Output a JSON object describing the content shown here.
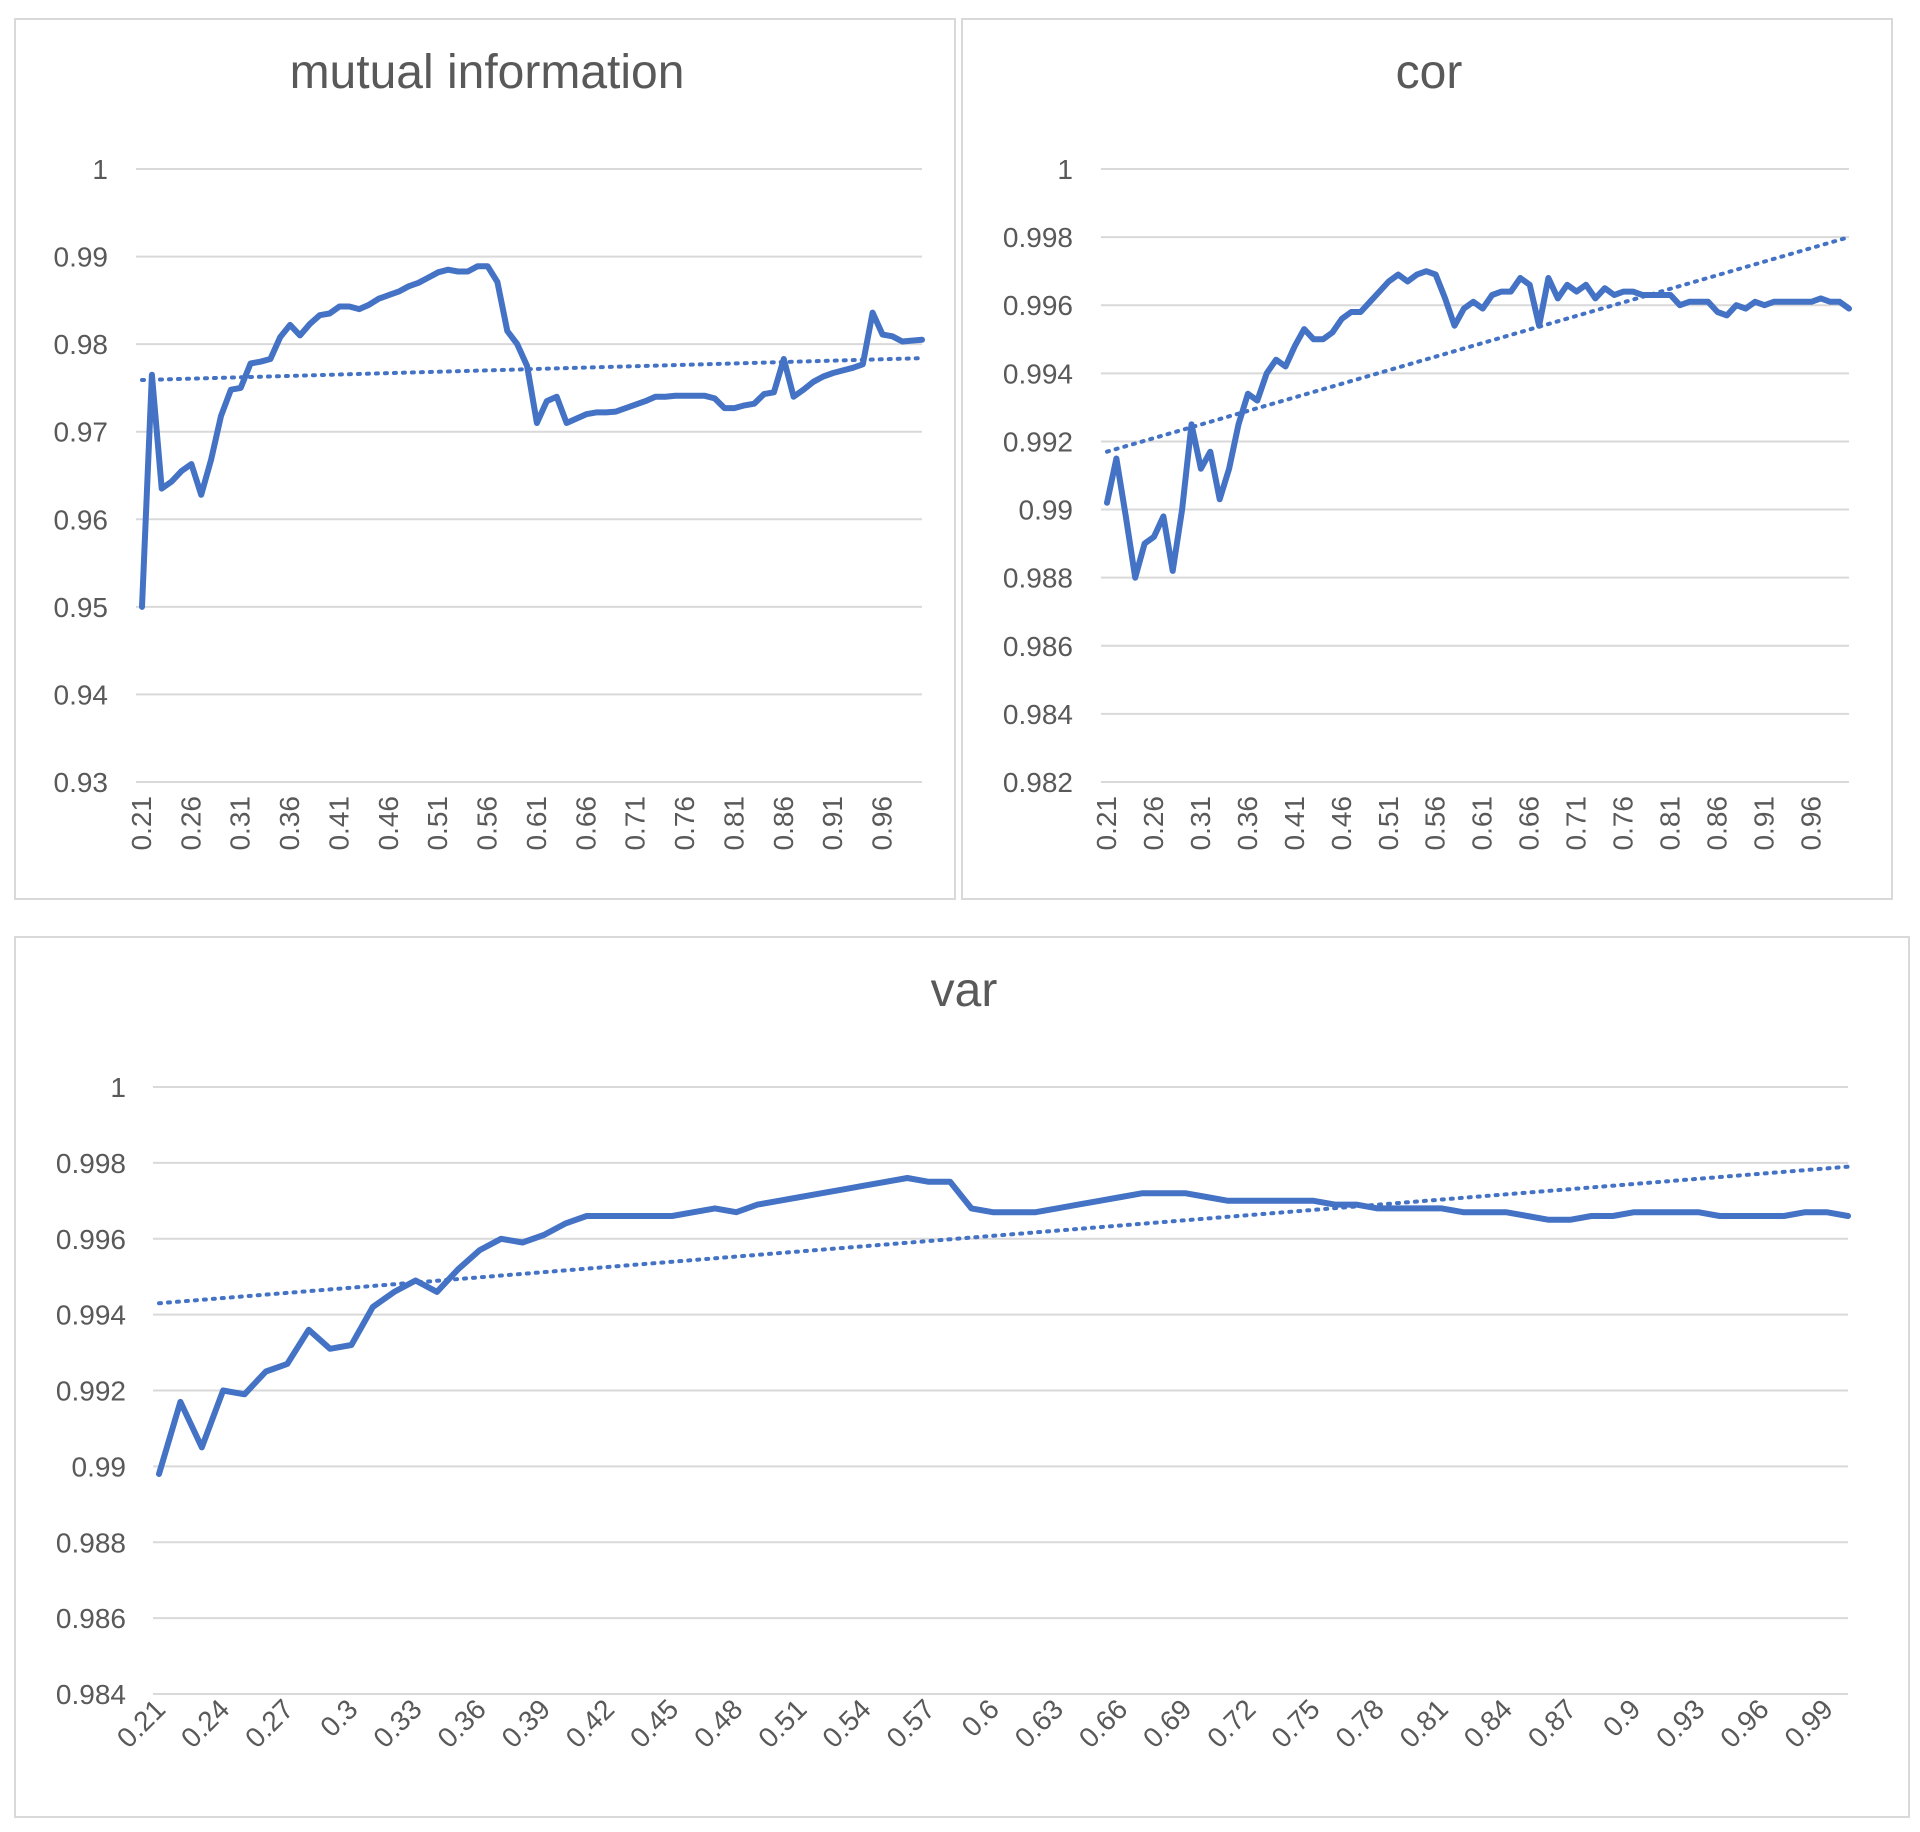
{
  "chart_data": [
    {
      "id": "mi",
      "type": "line",
      "title": "mutual information",
      "ylim": [
        0.93,
        1
      ],
      "yticks": [
        1,
        0.99,
        0.98,
        0.97,
        0.96,
        0.95,
        0.94,
        0.93
      ],
      "ytick_labels": [
        "1",
        "0.99",
        "0.98",
        "0.97",
        "0.96",
        "0.95",
        "0.94",
        "0.93"
      ],
      "xlim": [
        0.21,
        1.0
      ],
      "xticks": [
        0.21,
        0.26,
        0.31,
        0.36,
        0.41,
        0.46,
        0.51,
        0.56,
        0.61,
        0.66,
        0.71,
        0.76,
        0.81,
        0.86,
        0.91,
        0.96
      ],
      "xtick_labels": [
        "0.21",
        "0.26",
        "0.31",
        "0.36",
        "0.41",
        "0.46",
        "0.51",
        "0.56",
        "0.61",
        "0.66",
        "0.71",
        "0.76",
        "0.81",
        "0.86",
        "0.91",
        "0.96"
      ],
      "xtick_rotation": -90,
      "grid": true,
      "trendline": {
        "type": "linear",
        "style": "dotted",
        "x": [
          0.21,
          1.0
        ],
        "y": [
          0.9759,
          0.9784
        ]
      },
      "series": [
        {
          "x": [
            0.21,
            0.22,
            0.23,
            0.24,
            0.25,
            0.26,
            0.27,
            0.28,
            0.29,
            0.3,
            0.31,
            0.32,
            0.33,
            0.34,
            0.35,
            0.36,
            0.37,
            0.38,
            0.39,
            0.4,
            0.41,
            0.42,
            0.43,
            0.44,
            0.45,
            0.46,
            0.47,
            0.48,
            0.49,
            0.5,
            0.51,
            0.52,
            0.53,
            0.54,
            0.55,
            0.56,
            0.57,
            0.58,
            0.59,
            0.6,
            0.61,
            0.62,
            0.63,
            0.64,
            0.65,
            0.66,
            0.67,
            0.68,
            0.69,
            0.7,
            0.71,
            0.72,
            0.73,
            0.74,
            0.75,
            0.76,
            0.77,
            0.78,
            0.79,
            0.8,
            0.81,
            0.82,
            0.83,
            0.84,
            0.85,
            0.86,
            0.87,
            0.88,
            0.89,
            0.9,
            0.91,
            0.92,
            0.93,
            0.94,
            0.95,
            0.96,
            0.97,
            0.98,
            0.99,
            1.0
          ],
          "values": [
            0.95,
            0.9765,
            0.9635,
            0.9643,
            0.9655,
            0.9663,
            0.9628,
            0.9668,
            0.9718,
            0.9748,
            0.975,
            0.9778,
            0.978,
            0.9783,
            0.9808,
            0.9822,
            0.981,
            0.9823,
            0.9833,
            0.9835,
            0.9843,
            0.9843,
            0.984,
            0.9845,
            0.9852,
            0.9856,
            0.986,
            0.9866,
            0.987,
            0.9876,
            0.9882,
            0.9885,
            0.9883,
            0.9883,
            0.9889,
            0.9889,
            0.9871,
            0.9815,
            0.98,
            0.9775,
            0.971,
            0.9735,
            0.974,
            0.971,
            0.9715,
            0.972,
            0.9722,
            0.9722,
            0.9723,
            0.9727,
            0.9731,
            0.9735,
            0.974,
            0.974,
            0.9741,
            0.9741,
            0.9741,
            0.9741,
            0.9738,
            0.9727,
            0.9727,
            0.973,
            0.9732,
            0.9743,
            0.9745,
            0.9783,
            0.974,
            0.9748,
            0.9757,
            0.9763,
            0.9767,
            0.977,
            0.9773,
            0.9777,
            0.9836,
            0.9811,
            0.9809,
            0.9803,
            0.9804,
            0.9805
          ]
        }
      ]
    },
    {
      "id": "cor",
      "type": "line",
      "title": "cor",
      "ylim": [
        0.982,
        1
      ],
      "yticks": [
        1,
        0.998,
        0.996,
        0.994,
        0.992,
        0.99,
        0.988,
        0.986,
        0.984,
        0.982
      ],
      "ytick_labels": [
        "1",
        "0.998",
        "0.996",
        "0.994",
        "0.992",
        "0.99",
        "0.988",
        "0.986",
        "0.984",
        "0.982"
      ],
      "xlim": [
        0.21,
        1.0
      ],
      "xticks": [
        0.21,
        0.26,
        0.31,
        0.36,
        0.41,
        0.46,
        0.51,
        0.56,
        0.61,
        0.66,
        0.71,
        0.76,
        0.81,
        0.86,
        0.91,
        0.96
      ],
      "xtick_labels": [
        "0.21",
        "0.26",
        "0.31",
        "0.36",
        "0.41",
        "0.46",
        "0.51",
        "0.56",
        "0.61",
        "0.66",
        "0.71",
        "0.76",
        "0.81",
        "0.86",
        "0.91",
        "0.96"
      ],
      "xtick_rotation": -90,
      "grid": true,
      "trendline": {
        "type": "linear",
        "style": "dotted",
        "x": [
          0.21,
          1.0
        ],
        "y": [
          0.9917,
          0.998
        ]
      },
      "series": [
        {
          "x": [
            0.21,
            0.22,
            0.23,
            0.24,
            0.25,
            0.26,
            0.27,
            0.28,
            0.29,
            0.3,
            0.31,
            0.32,
            0.33,
            0.34,
            0.35,
            0.36,
            0.37,
            0.38,
            0.39,
            0.4,
            0.41,
            0.42,
            0.43,
            0.44,
            0.45,
            0.46,
            0.47,
            0.48,
            0.49,
            0.5,
            0.51,
            0.52,
            0.53,
            0.54,
            0.55,
            0.56,
            0.57,
            0.58,
            0.59,
            0.6,
            0.61,
            0.62,
            0.63,
            0.64,
            0.65,
            0.66,
            0.67,
            0.68,
            0.69,
            0.7,
            0.71,
            0.72,
            0.73,
            0.74,
            0.75,
            0.76,
            0.77,
            0.78,
            0.79,
            0.8,
            0.81,
            0.82,
            0.83,
            0.84,
            0.85,
            0.86,
            0.87,
            0.88,
            0.89,
            0.9,
            0.91,
            0.92,
            0.93,
            0.94,
            0.95,
            0.96,
            0.97,
            0.98,
            0.99,
            1.0
          ],
          "values": [
            0.9902,
            0.9915,
            0.9898,
            0.988,
            0.989,
            0.9892,
            0.9898,
            0.9882,
            0.99,
            0.9925,
            0.9912,
            0.9917,
            0.9903,
            0.9912,
            0.9925,
            0.9934,
            0.9932,
            0.994,
            0.9944,
            0.9942,
            0.9948,
            0.9953,
            0.995,
            0.995,
            0.9952,
            0.9956,
            0.9958,
            0.9958,
            0.9961,
            0.9964,
            0.9967,
            0.9969,
            0.9967,
            0.9969,
            0.997,
            0.9969,
            0.9962,
            0.9954,
            0.9959,
            0.9961,
            0.9959,
            0.9963,
            0.9964,
            0.9964,
            0.9968,
            0.9966,
            0.9954,
            0.9968,
            0.9962,
            0.9966,
            0.9964,
            0.9966,
            0.9962,
            0.9965,
            0.9963,
            0.9964,
            0.9964,
            0.9963,
            0.9963,
            0.9963,
            0.9963,
            0.996,
            0.9961,
            0.9961,
            0.9961,
            0.9958,
            0.9957,
            0.996,
            0.9959,
            0.9961,
            0.996,
            0.9961,
            0.9961,
            0.9961,
            0.9961,
            0.9961,
            0.9962,
            0.9961,
            0.9961,
            0.9959
          ]
        }
      ]
    },
    {
      "id": "var",
      "type": "line",
      "title": "var",
      "ylim": [
        0.984,
        1
      ],
      "yticks": [
        1,
        0.998,
        0.996,
        0.994,
        0.992,
        0.99,
        0.988,
        0.986,
        0.984
      ],
      "ytick_labels": [
        "1",
        "0.998",
        "0.996",
        "0.994",
        "0.992",
        "0.99",
        "0.988",
        "0.986",
        "0.984"
      ],
      "xlim": [
        0.21,
        1.0
      ],
      "xticks": [
        0.21,
        0.24,
        0.27,
        0.3,
        0.33,
        0.36,
        0.39,
        0.42,
        0.45,
        0.48,
        0.51,
        0.54,
        0.57,
        0.6,
        0.63,
        0.66,
        0.69,
        0.72,
        0.75,
        0.78,
        0.81,
        0.84,
        0.87,
        0.9,
        0.93,
        0.96,
        0.99
      ],
      "xtick_labels": [
        "0.21",
        "0.24",
        "0.27",
        "0.3",
        "0.33",
        "0.36",
        "0.39",
        "0.42",
        "0.45",
        "0.48",
        "0.51",
        "0.54",
        "0.57",
        "0.6",
        "0.63",
        "0.66",
        "0.69",
        "0.72",
        "0.75",
        "0.78",
        "0.81",
        "0.84",
        "0.87",
        "0.9",
        "0.93",
        "0.96",
        "0.99"
      ],
      "xtick_rotation": -45,
      "grid": true,
      "trendline": {
        "type": "linear",
        "style": "dotted",
        "x": [
          0.21,
          1.0
        ],
        "y": [
          0.9943,
          0.9979
        ]
      },
      "series": [
        {
          "x": [
            0.21,
            0.22,
            0.23,
            0.24,
            0.25,
            0.26,
            0.27,
            0.28,
            0.29,
            0.3,
            0.31,
            0.32,
            0.33,
            0.34,
            0.35,
            0.36,
            0.37,
            0.38,
            0.39,
            0.4,
            0.41,
            0.42,
            0.43,
            0.44,
            0.45,
            0.46,
            0.47,
            0.48,
            0.49,
            0.5,
            0.51,
            0.52,
            0.53,
            0.54,
            0.55,
            0.56,
            0.57,
            0.58,
            0.59,
            0.6,
            0.61,
            0.62,
            0.63,
            0.64,
            0.65,
            0.66,
            0.67,
            0.68,
            0.69,
            0.7,
            0.71,
            0.72,
            0.73,
            0.74,
            0.75,
            0.76,
            0.77,
            0.78,
            0.79,
            0.8,
            0.81,
            0.82,
            0.83,
            0.84,
            0.85,
            0.86,
            0.87,
            0.88,
            0.89,
            0.9,
            0.91,
            0.92,
            0.93,
            0.94,
            0.95,
            0.96,
            0.97,
            0.98,
            0.99,
            1.0
          ],
          "values": [
            0.9898,
            0.9917,
            0.9905,
            0.992,
            0.9919,
            0.9925,
            0.9927,
            0.9936,
            0.9931,
            0.9932,
            0.9942,
            0.9946,
            0.9949,
            0.9946,
            0.9952,
            0.9957,
            0.996,
            0.9959,
            0.9961,
            0.9964,
            0.9966,
            0.9966,
            0.9966,
            0.9966,
            0.9966,
            0.9967,
            0.9968,
            0.9967,
            0.9969,
            0.997,
            0.9971,
            0.9972,
            0.9973,
            0.9974,
            0.9975,
            0.9976,
            0.9975,
            0.9975,
            0.9968,
            0.9967,
            0.9967,
            0.9967,
            0.9968,
            0.9969,
            0.997,
            0.9971,
            0.9972,
            0.9972,
            0.9972,
            0.9971,
            0.997,
            0.997,
            0.997,
            0.997,
            0.997,
            0.9969,
            0.9969,
            0.9968,
            0.9968,
            0.9968,
            0.9968,
            0.9967,
            0.9967,
            0.9967,
            0.9966,
            0.9965,
            0.9965,
            0.9966,
            0.9966,
            0.9967,
            0.9967,
            0.9967,
            0.9967,
            0.9966,
            0.9966,
            0.9966,
            0.9966,
            0.9967,
            0.9967,
            0.9966
          ]
        }
      ]
    }
  ]
}
